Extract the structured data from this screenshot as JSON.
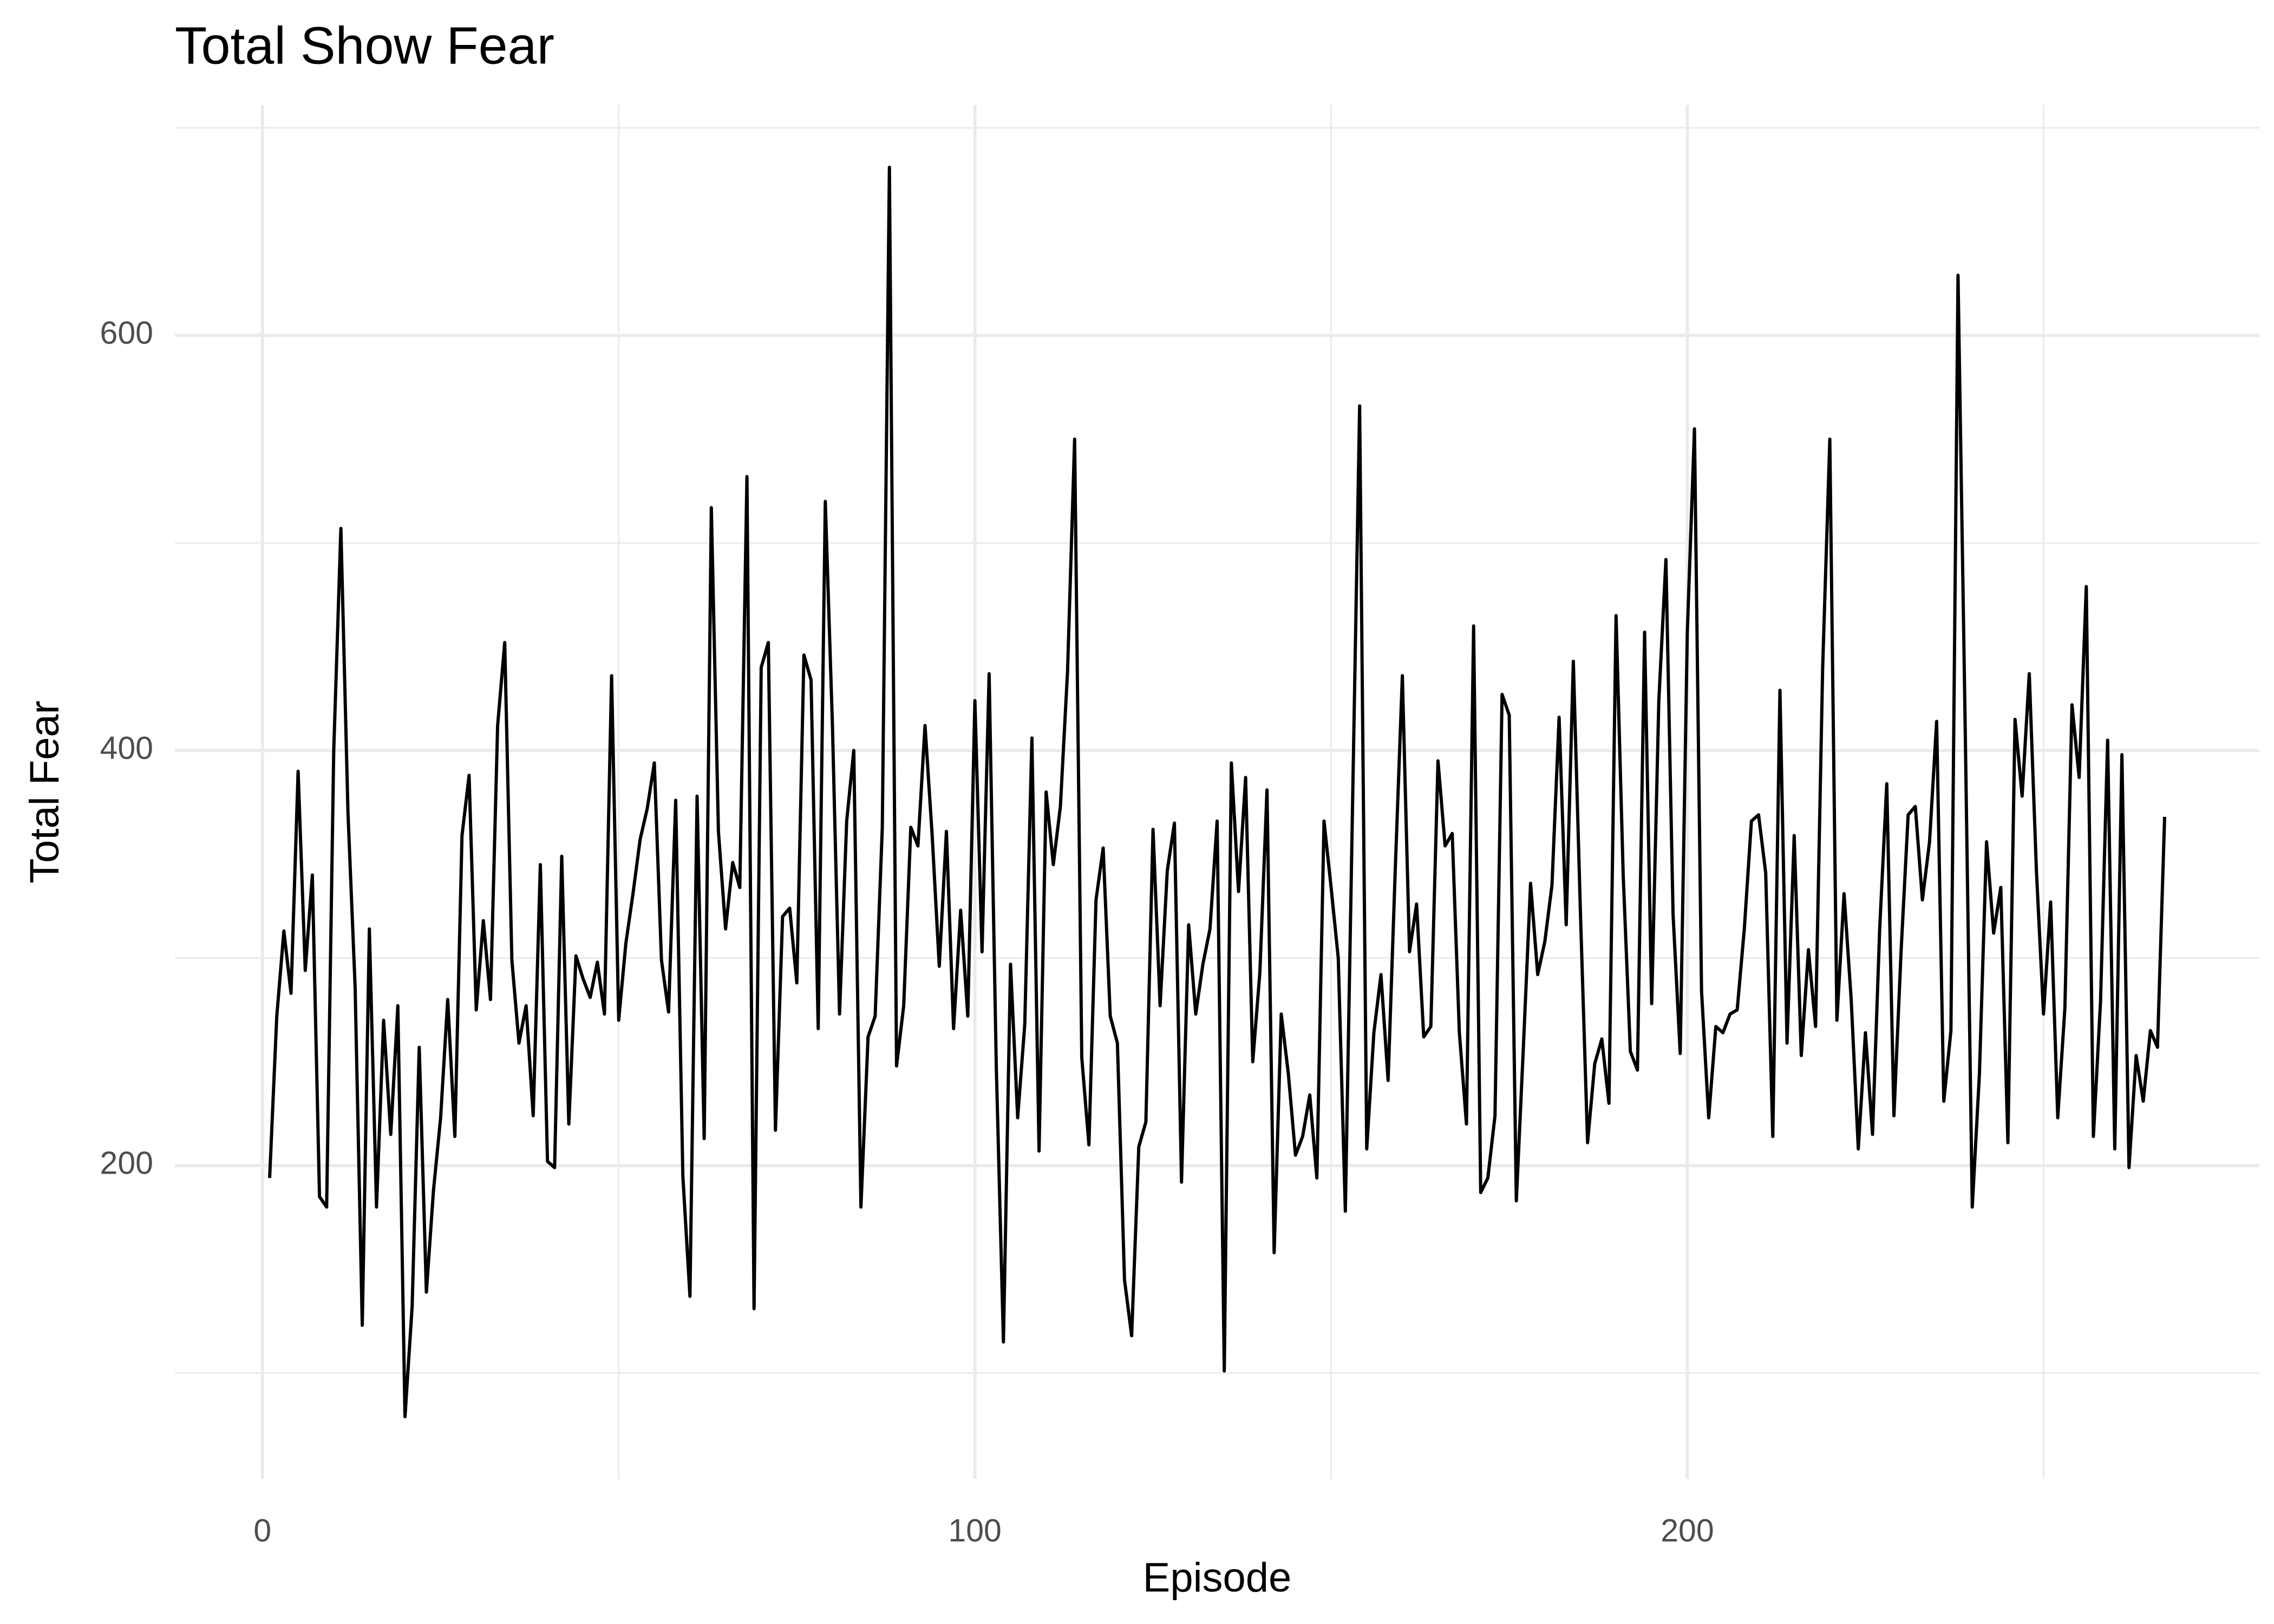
{
  "chart_data": {
    "type": "line",
    "title": "Total Show Fear",
    "x_label": "Episode",
    "y_label": "Total Fear",
    "x": [
      1,
      2,
      3,
      4,
      5,
      6,
      7,
      8,
      9,
      10,
      11,
      12,
      13,
      14,
      15,
      16,
      17,
      18,
      19,
      20,
      21,
      22,
      23,
      24,
      25,
      26,
      27,
      28,
      29,
      30,
      31,
      32,
      33,
      34,
      35,
      36,
      37,
      38,
      39,
      40,
      41,
      42,
      43,
      44,
      45,
      46,
      47,
      48,
      49,
      50,
      51,
      52,
      53,
      54,
      55,
      56,
      57,
      58,
      59,
      60,
      61,
      62,
      63,
      64,
      65,
      66,
      67,
      68,
      69,
      70,
      71,
      72,
      73,
      74,
      75,
      76,
      77,
      78,
      79,
      80,
      81,
      82,
      83,
      84,
      85,
      86,
      87,
      88,
      89,
      90,
      91,
      92,
      93,
      94,
      95,
      96,
      97,
      98,
      99,
      100,
      101,
      102,
      103,
      104,
      105,
      106,
      107,
      108,
      109,
      110,
      111,
      112,
      113,
      114,
      115,
      116,
      117,
      118,
      119,
      120,
      121,
      122,
      123,
      124,
      125,
      126,
      127,
      128,
      129,
      130,
      131,
      132,
      133,
      134,
      135,
      136,
      137,
      138,
      139,
      140,
      141,
      142,
      143,
      144,
      145,
      146,
      147,
      148,
      149,
      150,
      151,
      152,
      153,
      154,
      155,
      156,
      157,
      158,
      159,
      160,
      161,
      162,
      163,
      164,
      165,
      166,
      167,
      168,
      169,
      170,
      171,
      172,
      173,
      174,
      175,
      176,
      177,
      178,
      179,
      180,
      181,
      182,
      183,
      184,
      185,
      186,
      187,
      188,
      189,
      190,
      191,
      192,
      193,
      194,
      195,
      196,
      197,
      198,
      199,
      200,
      201,
      202,
      203,
      204,
      205,
      206,
      207,
      208,
      209,
      210,
      211,
      212,
      213,
      214,
      215,
      216,
      217,
      218,
      219,
      220,
      221,
      222,
      223,
      224,
      225,
      226,
      227,
      228,
      229,
      230,
      231,
      232,
      233,
      234,
      235,
      236,
      237,
      238,
      239,
      240,
      241,
      242,
      243,
      244,
      245,
      246,
      247,
      248,
      249,
      250,
      251,
      252,
      253,
      254,
      255,
      256,
      257,
      258,
      259,
      260,
      261,
      262,
      263,
      264,
      265,
      266,
      267
    ],
    "series": [
      {
        "color": "#000000",
        "values": [
          194,
          272,
          313,
          283,
          390,
          294,
          340,
          185,
          180,
          400,
          507,
          370,
          286,
          123,
          314,
          180,
          270,
          215,
          277,
          79,
          132,
          257,
          139,
          188,
          223,
          280,
          214,
          359,
          388,
          275,
          318,
          280,
          412,
          452,
          299,
          259,
          277,
          224,
          345,
          202,
          199,
          349,
          220,
          301,
          290,
          281,
          298,
          273,
          436,
          270,
          307,
          331,
          357,
          372,
          394,
          299,
          274,
          376,
          195,
          137,
          378,
          213,
          517,
          361,
          314,
          346,
          334,
          532,
          131,
          440,
          452,
          217,
          320,
          324,
          288,
          446,
          434,
          266,
          520,
          412,
          273,
          366,
          400,
          180,
          262,
          272,
          363,
          681,
          248,
          277,
          363,
          354,
          412,
          359,
          296,
          361,
          266,
          323,
          272,
          424,
          303,
          437,
          248,
          115,
          297,
          223,
          268,
          406,
          207,
          380,
          345,
          373,
          438,
          550,
          252,
          210,
          328,
          353,
          272,
          259,
          145,
          118,
          209,
          221,
          362,
          277,
          342,
          365,
          192,
          316,
          273,
          297,
          314,
          366,
          101,
          394,
          332,
          387,
          250,
          293,
          381,
          158,
          273,
          244,
          205,
          214,
          234,
          194,
          366,
          334,
          300,
          178,
          372,
          566,
          208,
          264,
          292,
          241,
          342,
          436,
          303,
          326,
          262,
          267,
          395,
          354,
          360,
          264,
          220,
          460,
          187,
          194,
          224,
          427,
          417,
          183,
          258,
          336,
          292,
          308,
          335,
          416,
          316,
          443,
          321,
          211,
          249,
          261,
          230,
          465,
          340,
          255,
          246,
          457,
          278,
          424,
          492,
          321,
          254,
          457,
          555,
          284,
          223,
          267,
          264,
          273,
          275,
          314,
          366,
          369,
          341,
          214,
          429,
          259,
          359,
          253,
          304,
          267,
          440,
          550,
          270,
          331,
          280,
          208,
          264,
          215,
          314,
          384,
          224,
          303,
          369,
          373,
          328,
          356,
          414,
          231,
          265,
          629,
          412,
          180,
          244,
          356,
          312,
          334,
          211,
          415,
          378,
          437,
          342,
          273,
          327,
          223,
          276,
          422,
          387,
          479,
          214,
          279,
          405,
          208,
          398,
          199,
          253,
          231,
          265,
          257,
          368
        ]
      }
    ],
    "xlim": [
      -12.3,
      280.3
    ],
    "ylim": [
      49,
      711
    ],
    "xticks": [
      0,
      100,
      200
    ],
    "yticks": [
      200,
      400,
      600
    ],
    "xminor": [
      50,
      150,
      250
    ],
    "yminor": [
      100,
      300,
      500,
      700
    ],
    "grid": true
  }
}
